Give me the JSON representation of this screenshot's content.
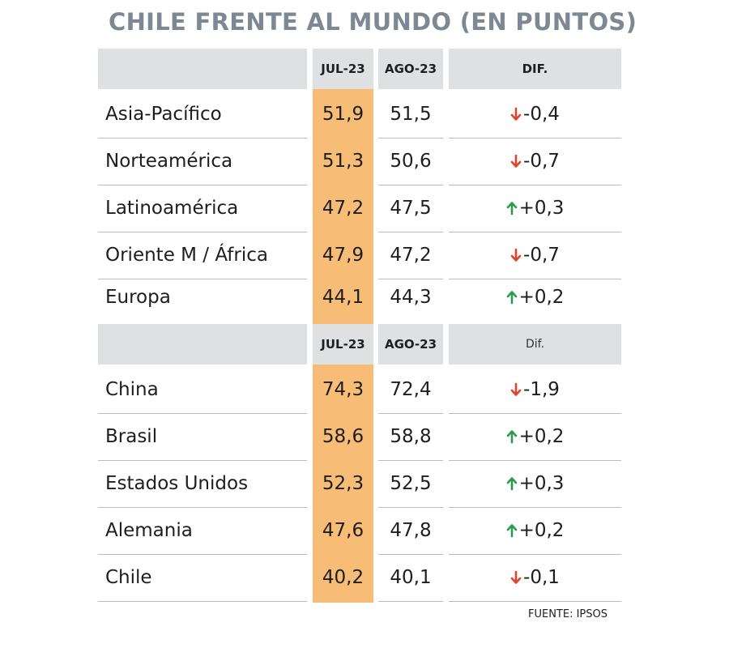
{
  "title": "CHILE FRENTE AL MUNDO (EN PUNTOS)",
  "source": "FUENTE: IPSOS",
  "colors": {
    "highlight": "#f7bd77",
    "header": "#dfe0e2",
    "up": "#2e9a4e",
    "down": "#e0442a",
    "title": "#7d8893"
  },
  "chart_data": [
    {
      "type": "table",
      "columns": [
        "",
        "JUL-23",
        "AGO-23",
        "DIF."
      ],
      "rows": [
        {
          "name": "Asia-Pacífico",
          "jul": "51,9",
          "ago": "51,5",
          "dif": "-0,4",
          "dir": "down"
        },
        {
          "name": "Norteamérica",
          "jul": "51,3",
          "ago": "50,6",
          "dif": "-0,7",
          "dir": "down"
        },
        {
          "name": "Latinoamérica",
          "jul": "47,2",
          "ago": "47,5",
          "dif": "+0,3",
          "dir": "up"
        },
        {
          "name": "Oriente M / África",
          "jul": "47,9",
          "ago": "47,2",
          "dif": "-0,7",
          "dir": "down"
        },
        {
          "name": "Europa",
          "jul": "44,1",
          "ago": "44,3",
          "dif": "+0,2",
          "dir": "up"
        }
      ]
    },
    {
      "type": "table",
      "columns": [
        "",
        "JUL-23",
        "AGO-23",
        "Dif."
      ],
      "rows": [
        {
          "name": "China",
          "jul": "74,3",
          "ago": "72,4",
          "dif": "-1,9",
          "dir": "down"
        },
        {
          "name": "Brasil",
          "jul": "58,6",
          "ago": "58,8",
          "dif": "+0,2",
          "dir": "up"
        },
        {
          "name": "Estados Unidos",
          "jul": "52,3",
          "ago": "52,5",
          "dif": "+0,3",
          "dir": "up"
        },
        {
          "name": "Alemania",
          "jul": "47,6",
          "ago": "47,8",
          "dif": "+0,2",
          "dir": "up"
        },
        {
          "name": "Chile",
          "jul": "40,2",
          "ago": "40,1",
          "dif": "-0,1",
          "dir": "down"
        }
      ]
    }
  ]
}
